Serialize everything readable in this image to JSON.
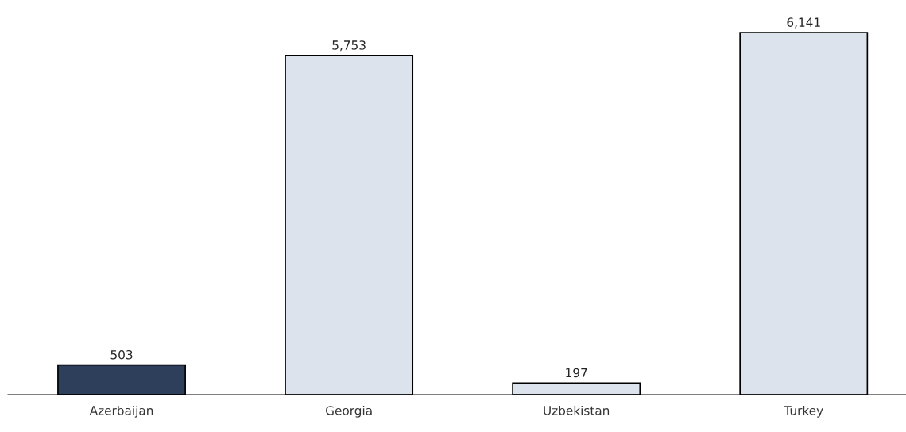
{
  "chart_data": {
    "type": "bar",
    "categories": [
      "Azerbaijan",
      "Georgia",
      "Uzbekistan",
      "Turkey"
    ],
    "values": [
      503,
      5753,
      197,
      6141
    ],
    "colors": [
      "#2e3f5c",
      "#dde3ed",
      "#dde3ed",
      "#dde3ed"
    ],
    "value_labels": [
      "503",
      "5,753",
      "197",
      "6,141"
    ],
    "grid": false,
    "legend": false,
    "tick_labels": "x"
  }
}
